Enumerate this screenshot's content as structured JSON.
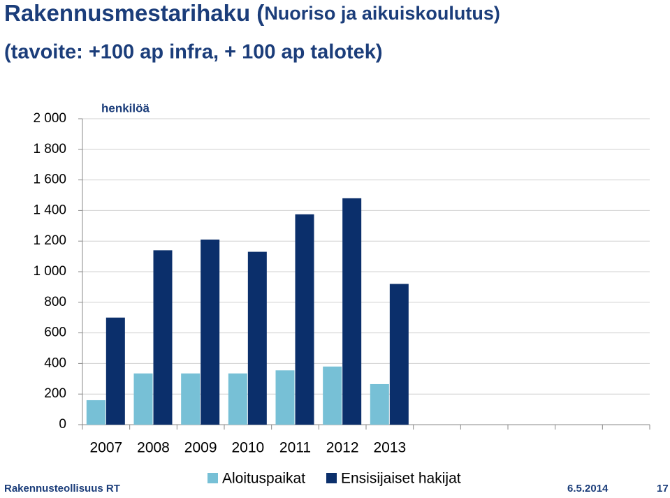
{
  "chart_data": {
    "type": "bar",
    "title": "Rakennusmestarihaku (",
    "title_small": "Nuoriso ja aikuiskoulutus)",
    "subtitle": "(tavoite: +100 ap infra, + 100 ap talotek)",
    "y_label": "henkilöä",
    "categories": [
      "2007",
      "2008",
      "2009",
      "2010",
      "2011",
      "2012",
      "2013",
      null,
      null,
      null,
      null,
      null
    ],
    "series": [
      {
        "name": "Aloituspaikat",
        "color": "#77c0d6",
        "values": [
          160,
          335,
          335,
          335,
          355,
          380,
          265,
          null,
          null,
          null,
          null,
          null
        ]
      },
      {
        "name": "Ensisijaiset hakijat",
        "color": "#0b2f6b",
        "values": [
          700,
          1140,
          1210,
          1130,
          1375,
          1480,
          920,
          null,
          null,
          null,
          null,
          null
        ]
      }
    ],
    "ylim": [
      0,
      2000
    ],
    "yticks": [
      0,
      200,
      400,
      600,
      800,
      {
        "value": 1000,
        "label": "1 000"
      },
      {
        "value": 1200,
        "label": "1 200"
      },
      {
        "value": 1400,
        "label": "1 400"
      },
      {
        "value": 1600,
        "label": "1 600"
      },
      {
        "value": 1800,
        "label": "1 800"
      },
      {
        "value": 2000,
        "label": "2 000"
      }
    ],
    "grid": true,
    "legend": "bottom"
  },
  "footer": {
    "left": "Rakennusteollisuus RT",
    "date": "6.5.2014",
    "page": "17"
  }
}
